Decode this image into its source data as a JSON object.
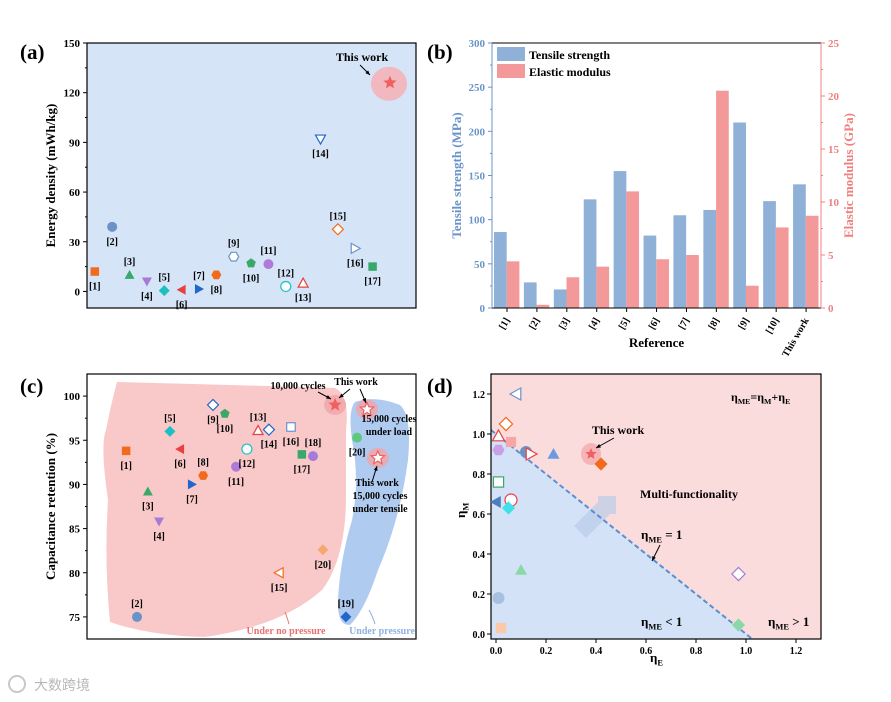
{
  "panels": {
    "a": "(a)",
    "b": "(b)",
    "c": "(c)",
    "d": "(d)"
  },
  "watermark": "大数跨境",
  "chart_data": [
    {
      "id": "a",
      "type": "scatter",
      "ylabel": "Energy density (mWh/kg)",
      "xlabel": "",
      "ylim": [
        -10,
        150
      ],
      "yticks": [
        0,
        30,
        60,
        90,
        120,
        150
      ],
      "xlim": [
        0.55,
        19.5
      ],
      "background": "#d6e4f7",
      "points": [
        {
          "label": "[1]",
          "x": 1,
          "y": 12,
          "shape": "square",
          "color": "#f26b1d",
          "open": false,
          "lp": "below"
        },
        {
          "label": "[2]",
          "x": 2,
          "y": 39,
          "shape": "circle",
          "color": "#6a93c8",
          "open": false,
          "lp": "below"
        },
        {
          "label": "[3]",
          "x": 3,
          "y": 10,
          "shape": "tri-up",
          "color": "#3aa86b",
          "open": false,
          "lp": "above"
        },
        {
          "label": "[4]",
          "x": 4,
          "y": 6,
          "shape": "tri-down",
          "color": "#a77ad8",
          "open": false,
          "lp": "below"
        },
        {
          "label": "[5]",
          "x": 5,
          "y": 0.5,
          "shape": "diamond",
          "color": "#1cc0c0",
          "open": false,
          "lp": "above"
        },
        {
          "label": "[6]",
          "x": 6,
          "y": 1,
          "shape": "tri-left",
          "color": "#e84040",
          "open": false,
          "lp": "below"
        },
        {
          "label": "[7]",
          "x": 7,
          "y": 1.5,
          "shape": "tri-right",
          "color": "#2266cc",
          "open": false,
          "lp": "above"
        },
        {
          "label": "[8]",
          "x": 8,
          "y": 10,
          "shape": "hexagon",
          "color": "#f26b1d",
          "open": false,
          "lp": "below"
        },
        {
          "label": "[9]",
          "x": 9,
          "y": 21,
          "shape": "hexagon",
          "color": "#6a93c8",
          "open": true,
          "lp": "above"
        },
        {
          "label": "[10]",
          "x": 10,
          "y": 17,
          "shape": "pentagon",
          "color": "#3aa86b",
          "open": false,
          "lp": "below"
        },
        {
          "label": "[11]",
          "x": 11,
          "y": 16.5,
          "shape": "circle",
          "color": "#b07ad8",
          "open": false,
          "lp": "above"
        },
        {
          "label": "[12]",
          "x": 12,
          "y": 3,
          "shape": "circle",
          "color": "#1cc0c0",
          "open": true,
          "lp": "above"
        },
        {
          "label": "[13]",
          "x": 13,
          "y": 5,
          "shape": "tri-up",
          "color": "#e84040",
          "open": true,
          "lp": "below"
        },
        {
          "label": "[14]",
          "x": 14,
          "y": 92,
          "shape": "tri-down",
          "color": "#2266cc",
          "open": true,
          "lp": "below"
        },
        {
          "label": "[15]",
          "x": 15,
          "y": 37.5,
          "shape": "diamond",
          "color": "#f26b1d",
          "open": true,
          "lp": "above"
        },
        {
          "label": "[16]",
          "x": 16,
          "y": 26,
          "shape": "tri-right",
          "color": "#6a93c8",
          "open": true,
          "lp": "below"
        },
        {
          "label": "[17]",
          "x": 17,
          "y": 15,
          "shape": "square",
          "color": "#3aa86b",
          "open": false,
          "lp": "below"
        },
        {
          "label": "This work",
          "x": 18,
          "y": 126,
          "shape": "star",
          "color": "#f06060",
          "open": false,
          "lp": "none",
          "highlight": true
        }
      ],
      "annotation": "This work"
    },
    {
      "id": "b",
      "type": "bar",
      "xlabel": "Reference",
      "ylabel": "Tensile strength (MPa)",
      "y2label": "Elastic modulus (GPa)",
      "ylim": [
        0,
        300
      ],
      "y2lim": [
        0,
        25
      ],
      "yticks": [
        0,
        50,
        100,
        150,
        200,
        250,
        300
      ],
      "y2ticks": [
        0,
        5,
        10,
        15,
        20,
        25
      ],
      "categories": [
        "[1]",
        "[2]",
        "[3]",
        "[4]",
        "[5]",
        "[6]",
        "[7]",
        "[8]",
        "[9]",
        "[10]",
        "This work"
      ],
      "series": [
        {
          "name": "Tensile strength",
          "axis": "left",
          "color": "#8fb1d8",
          "values": [
            86,
            29,
            21,
            123,
            155,
            82,
            105,
            111,
            210,
            121,
            140
          ]
        },
        {
          "name": "Elastic modulus",
          "axis": "right",
          "color": "#f4999a",
          "values": [
            4.4,
            0.3,
            2.9,
            3.9,
            11.0,
            4.6,
            5.0,
            20.5,
            2.1,
            7.6,
            8.7
          ]
        }
      ],
      "legend": "top-left",
      "left_color": "#6a93c8",
      "right_color": "#f08080"
    },
    {
      "id": "c",
      "type": "scatter",
      "ylabel": "Capacitance retention (%)",
      "ylim": [
        72.5,
        102.5
      ],
      "yticks": [
        75,
        80,
        85,
        90,
        95,
        100
      ],
      "xlim": [
        0,
        100
      ],
      "points": [
        {
          "label": "[1]",
          "x": 11.9,
          "y": 93.8,
          "shape": "square",
          "color": "#f26b1d",
          "open": false,
          "lp": "below"
        },
        {
          "label": "[2]",
          "x": 15.2,
          "y": 75,
          "shape": "circle",
          "color": "#6a93c8",
          "open": false,
          "lp": "above"
        },
        {
          "label": "[3]",
          "x": 18.5,
          "y": 89.2,
          "shape": "tri-up",
          "color": "#3aa86b",
          "open": false,
          "lp": "below"
        },
        {
          "label": "[4]",
          "x": 21.9,
          "y": 85.8,
          "shape": "tri-down",
          "color": "#a77ad8",
          "open": false,
          "lp": "below"
        },
        {
          "label": "[5]",
          "x": 25.2,
          "y": 96,
          "shape": "diamond",
          "color": "#1cc0c0",
          "open": false,
          "lp": "above"
        },
        {
          "label": "[6]",
          "x": 28.3,
          "y": 94,
          "shape": "tri-left",
          "color": "#e84040",
          "open": false,
          "lp": "below"
        },
        {
          "label": "[7]",
          "x": 31.9,
          "y": 90,
          "shape": "tri-right",
          "color": "#2266cc",
          "open": false,
          "lp": "below"
        },
        {
          "label": "[8]",
          "x": 35.3,
          "y": 91,
          "shape": "hexagon",
          "color": "#f26b1d",
          "open": false,
          "lp": "above"
        },
        {
          "label": "[9]",
          "x": 38.3,
          "y": 99,
          "shape": "diamond",
          "color": "#2266cc",
          "open": true,
          "lp": "below"
        },
        {
          "label": "[10]",
          "x": 41.9,
          "y": 98,
          "shape": "pentagon",
          "color": "#3aa86b",
          "open": false,
          "lp": "below"
        },
        {
          "label": "[11]",
          "x": 45.3,
          "y": 92,
          "shape": "circle",
          "color": "#b07ad8",
          "open": false,
          "lp": "below"
        },
        {
          "label": "[12]",
          "x": 48.6,
          "y": 94,
          "shape": "circle",
          "color": "#1cc0c0",
          "open": true,
          "lp": "below"
        },
        {
          "label": "[13]",
          "x": 52,
          "y": 96.1,
          "shape": "tri-up",
          "color": "#e84040",
          "open": true,
          "lp": "above"
        },
        {
          "label": "[14]",
          "x": 55.3,
          "y": 96.2,
          "shape": "diamond",
          "color": "#2266cc",
          "open": true,
          "lp": "below"
        },
        {
          "label": "[15]",
          "x": 58.4,
          "y": 80,
          "shape": "tri-left",
          "color": "#f26b1d",
          "open": true,
          "lp": "below"
        },
        {
          "label": "[16]",
          "x": 62,
          "y": 96.5,
          "shape": "square",
          "color": "#6a93c8",
          "open": true,
          "lp": "below"
        },
        {
          "label": "[17]",
          "x": 65.3,
          "y": 93.4,
          "shape": "square",
          "color": "#3aa86b",
          "open": false,
          "lp": "below"
        },
        {
          "label": "[18]",
          "x": 68.7,
          "y": 93.2,
          "shape": "circle",
          "color": "#a77ad8",
          "open": false,
          "lp": "above"
        },
        {
          "label": "[20]",
          "x": 71.7,
          "y": 82.6,
          "shape": "diamond",
          "color": "#f7a870",
          "open": false,
          "lp": "below"
        },
        {
          "label": "[19]",
          "x": 78.7,
          "y": 75,
          "shape": "diamond",
          "color": "#2266cc",
          "open": false,
          "lp": "above"
        },
        {
          "label": "[20]",
          "x": 82.1,
          "y": 95.3,
          "shape": "circle",
          "color": "#5cc880",
          "open": false,
          "lp": "below"
        },
        {
          "label": "This work (10,000 cycles)",
          "x": 75.4,
          "y": 99,
          "shape": "star",
          "color": "#f06060",
          "open": false,
          "lp": "none",
          "highlight": true
        },
        {
          "label": "This work (15,000 cycles under load)",
          "x": 85.1,
          "y": 98.5,
          "shape": "star",
          "color": "#f06060",
          "open": true,
          "lp": "none",
          "highlight": true
        },
        {
          "label": "This work (15,000 cycles under tensile)",
          "x": 88.4,
          "y": 93,
          "shape": "star",
          "color": "#f06060",
          "open": true,
          "lp": "none",
          "highlight": true
        }
      ],
      "annotations": {
        "cycles_10k": "10,000 cycles",
        "this_work_1": "This work",
        "load_line1": "15,000 cycles",
        "load_line2": "under load",
        "tensile_line1": "This work",
        "tensile_line2": "15,000 cycles",
        "tensile_line3": "under tensile",
        "no_pressure": "Under no pressure",
        "pressure": "Under pressure"
      },
      "region_colors": {
        "no_pressure": "#f9c9c9",
        "pressure": "#afcbf0"
      }
    },
    {
      "id": "d",
      "type": "scatter",
      "xlabel": [
        [
          "η",
          false
        ],
        [
          "E",
          true
        ]
      ],
      "ylabel": [
        [
          "η",
          false
        ],
        [
          "M",
          true
        ]
      ],
      "xlim": [
        -0.02,
        1.3
      ],
      "ylim": [
        -0.025,
        1.3
      ],
      "xticks": [
        "0.0",
        "0.2",
        "0.4",
        "0.6",
        "0.8",
        "1.0",
        "1.2"
      ],
      "yticks": [
        "0.0",
        "0.2",
        "0.4",
        "0.6",
        "0.8",
        "1.0",
        "1.2"
      ],
      "threshold_line": {
        "intercept": 1,
        "slope": -1
      },
      "points": [
        {
          "x": 0.08,
          "y": 1.2,
          "shape": "tri-left",
          "color": "#6a93c8",
          "open": true
        },
        {
          "x": 0.04,
          "y": 1.05,
          "shape": "diamond",
          "color": "#f26b1d",
          "open": true
        },
        {
          "x": 0.01,
          "y": 0.99,
          "shape": "tri-up",
          "color": "#e84040",
          "open": true
        },
        {
          "x": 0.06,
          "y": 0.96,
          "shape": "square",
          "color": "#f7a5a5",
          "open": false
        },
        {
          "x": 0.01,
          "y": 0.92,
          "shape": "hexagon",
          "color": "#c9a0e8",
          "open": false
        },
        {
          "x": 0.12,
          "y": 0.91,
          "shape": "circle",
          "color": "#6a93c8",
          "open": false
        },
        {
          "x": 0.14,
          "y": 0.9,
          "shape": "tri-right",
          "color": "#e84040",
          "open": true
        },
        {
          "x": 0.23,
          "y": 0.9,
          "shape": "tri-up",
          "color": "#6a9be0",
          "open": false
        },
        {
          "x": 0.38,
          "y": 0.9,
          "shape": "star",
          "color": "#f06060",
          "open": false,
          "highlight": true
        },
        {
          "x": 0.42,
          "y": 0.85,
          "shape": "diamond",
          "color": "#f26b1d",
          "open": false
        },
        {
          "x": 0.01,
          "y": 0.76,
          "shape": "square",
          "color": "#3aa86b",
          "open": true
        },
        {
          "x": 0.06,
          "y": 0.67,
          "shape": "circle",
          "color": "#e84040",
          "open": true
        },
        {
          "x": 0.0,
          "y": 0.66,
          "shape": "tri-left",
          "color": "#4a7ec0",
          "open": false
        },
        {
          "x": 0.05,
          "y": 0.63,
          "shape": "diamond",
          "color": "#40e0e8",
          "open": false
        },
        {
          "x": 0.1,
          "y": 0.32,
          "shape": "tri-up",
          "color": "#8ad8a8",
          "open": false
        },
        {
          "x": 0.01,
          "y": 0.18,
          "shape": "circle",
          "color": "#a8c0e0",
          "open": false
        },
        {
          "x": 0.02,
          "y": 0.03,
          "shape": "square",
          "color": "#fbc8a8",
          "open": false
        },
        {
          "x": 0.97,
          "y": 0.3,
          "shape": "diamond",
          "color": "#a77ad8",
          "open": true
        },
        {
          "x": 0.97,
          "y": 0.045,
          "shape": "diamond",
          "color": "#8ad8a8",
          "open": false
        }
      ],
      "annotations": {
        "this_work": "This work",
        "multi": "Multi-functionality",
        "formula": [
          [
            "η",
            false
          ],
          [
            "ME",
            true
          ],
          [
            "=η",
            false
          ],
          [
            "M",
            true
          ],
          [
            "+η",
            false
          ],
          [
            "E",
            true
          ]
        ],
        "eq1": [
          [
            "η",
            false
          ],
          [
            "ME",
            true
          ],
          [
            " = 1",
            false
          ]
        ],
        "lt1": [
          [
            "η",
            false
          ],
          [
            "ME",
            true
          ],
          [
            " < 1",
            false
          ]
        ],
        "gt1": [
          [
            "η",
            false
          ],
          [
            "ME",
            true
          ],
          [
            " > 1",
            false
          ]
        ]
      },
      "region_colors": {
        "above": "#fbdcdc",
        "below": "#d3e2f7",
        "line": "#5b8fd0"
      }
    }
  ]
}
